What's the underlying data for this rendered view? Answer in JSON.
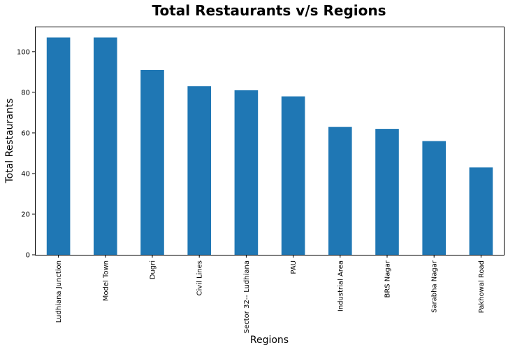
{
  "chart_data": {
    "type": "bar",
    "title": "Total Restaurants v/s Regions",
    "xlabel": "Regions",
    "ylabel": "Total Restaurants",
    "categories": [
      "Ludhiana Junction",
      "Model Town",
      "Dugri",
      "Civil Lines",
      "Sector 32-- Ludhiana",
      "PAU",
      "Industrial Area",
      "BRS Nagar",
      "Sarabha Nagar",
      "Pakhowal Road"
    ],
    "values": [
      107,
      107,
      91,
      83,
      81,
      78,
      63,
      62,
      56,
      43
    ],
    "ylim": [
      0,
      112.35
    ],
    "yticks": [
      0,
      20,
      40,
      60,
      80,
      100
    ],
    "ytick_labels": [
      "0",
      "20",
      "40",
      "60",
      "80",
      "100"
    ],
    "grid": false,
    "legend": "none",
    "bar_color": "#1f77b4"
  }
}
